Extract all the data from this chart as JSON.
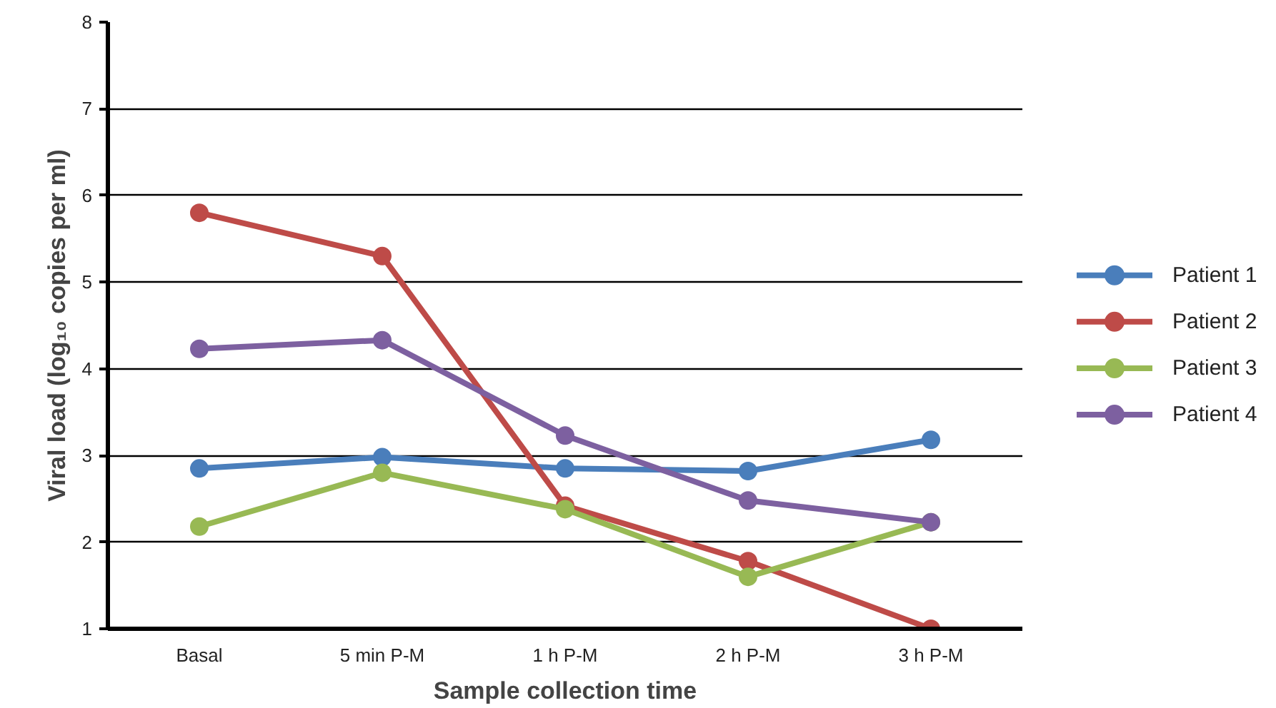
{
  "chart_data": {
    "type": "line",
    "xlabel": "Sample collection time",
    "ylabel": "Viral load (log₁₀ copies per ml)",
    "categories": [
      "Basal",
      "5 min P-M",
      "1 h P-M",
      "2 h P-M",
      "3 h P-M"
    ],
    "series": [
      {
        "name": "Patient 1",
        "color": "#4a7ebb",
        "values": [
          2.85,
          2.98,
          2.85,
          2.82,
          3.18
        ]
      },
      {
        "name": "Patient 2",
        "color": "#be4b48",
        "values": [
          5.8,
          5.3,
          2.42,
          1.78,
          1.0
        ]
      },
      {
        "name": "Patient 3",
        "color": "#98b954",
        "values": [
          2.18,
          2.8,
          2.38,
          1.6,
          2.23
        ]
      },
      {
        "name": "Patient 4",
        "color": "#7d60a0",
        "values": [
          4.23,
          4.33,
          3.23,
          2.48,
          2.23
        ]
      }
    ],
    "ylim": [
      1,
      8
    ],
    "yticks": [
      1,
      2,
      3,
      4,
      5,
      6,
      7,
      8
    ],
    "grid": "y",
    "legend": "right",
    "marker": "circle",
    "line_style": "solid"
  }
}
